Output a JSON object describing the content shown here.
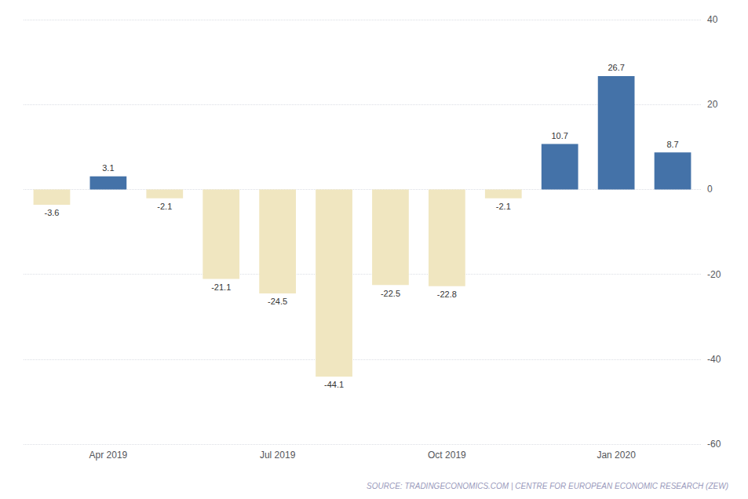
{
  "chart_data": {
    "type": "bar",
    "categories": [
      null,
      "Apr 2019",
      null,
      null,
      "Jul 2019",
      null,
      null,
      "Oct 2019",
      null,
      null,
      "Jan 2020",
      null
    ],
    "values": [
      -3.6,
      3.1,
      -2.1,
      -21.1,
      -24.5,
      -44.1,
      -22.5,
      -22.8,
      -2.1,
      10.7,
      26.7,
      8.7
    ],
    "colors": [
      "#f0e6c0",
      "#4472a8",
      "#f0e6c0",
      "#f0e6c0",
      "#f0e6c0",
      "#f0e6c0",
      "#f0e6c0",
      "#f0e6c0",
      "#f0e6c0",
      "#4472a8",
      "#4472a8",
      "#4472a8"
    ],
    "ylim": [
      -60,
      40
    ],
    "yticks": [
      40,
      20,
      0,
      -20,
      -40,
      -60
    ],
    "grid": true,
    "data_labels": true,
    "annotation": "SOURCE: TRADINGECONOMICS.COM | CENTRE FOR EUROPEAN ECONOMIC RESEARCH (ZEW)"
  }
}
